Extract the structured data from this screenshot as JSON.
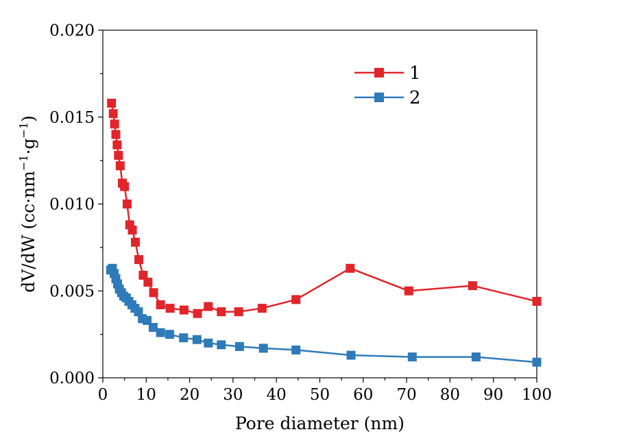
{
  "chart_data": {
    "type": "line",
    "title": "",
    "xlabel": "Pore diameter (nm)",
    "ylabel": "dV/dW (cc·nm⁻¹·g⁻¹)",
    "ylabel_parts": {
      "base": "dV/dW (cc·nm",
      "sup1": "−1",
      "mid": "·g",
      "sup2": "−1",
      "end": ")"
    },
    "xlim": [
      0,
      100
    ],
    "ylim": [
      0,
      0.02
    ],
    "xticks": [
      0,
      10,
      20,
      30,
      40,
      50,
      60,
      70,
      80,
      90,
      100
    ],
    "xtick_labels": [
      "0",
      "10",
      "20",
      "30",
      "40",
      "50",
      "60",
      "70",
      "80",
      "90",
      "100"
    ],
    "yticks": [
      0,
      0.005,
      0.01,
      0.015,
      0.02
    ],
    "ytick_labels": [
      "0.000",
      "0.005",
      "0.010",
      "0.015",
      "0.020"
    ],
    "legend_position": "top-right",
    "grid": false,
    "series": [
      {
        "name": "1",
        "color": "#e0252b",
        "x": [
          2.0,
          2.4,
          2.7,
          3.0,
          3.3,
          3.6,
          4.0,
          4.5,
          5.0,
          5.6,
          6.2,
          6.8,
          7.5,
          8.3,
          9.3,
          10.4,
          11.7,
          13.3,
          15.5,
          18.7,
          21.8,
          24.3,
          27.3,
          31.3,
          36.7,
          44.5,
          57.0,
          70.5,
          85.2,
          100.0
        ],
        "y": [
          0.0158,
          0.0152,
          0.0146,
          0.014,
          0.0134,
          0.0128,
          0.0122,
          0.0112,
          0.011,
          0.01,
          0.0088,
          0.0085,
          0.0078,
          0.0068,
          0.0059,
          0.0055,
          0.0049,
          0.0042,
          0.004,
          0.0039,
          0.0037,
          0.0041,
          0.0038,
          0.0038,
          0.004,
          0.0045,
          0.0063,
          0.005,
          0.0053,
          0.0044
        ]
      },
      {
        "name": "2",
        "color": "#2f7ab9",
        "x": [
          1.8,
          2.2,
          2.6,
          3.0,
          3.4,
          3.8,
          4.3,
          4.8,
          5.4,
          6.0,
          6.7,
          7.4,
          8.2,
          9.1,
          10.2,
          11.6,
          13.3,
          15.4,
          18.6,
          21.7,
          24.3,
          27.3,
          31.5,
          37.0,
          44.5,
          57.2,
          71.3,
          86.0,
          100.0
        ],
        "y": [
          0.0062,
          0.0063,
          0.006,
          0.0057,
          0.0054,
          0.0051,
          0.0049,
          0.0047,
          0.0046,
          0.0044,
          0.0042,
          0.004,
          0.0038,
          0.0034,
          0.0033,
          0.0029,
          0.0026,
          0.0025,
          0.0023,
          0.0022,
          0.002,
          0.0019,
          0.0018,
          0.0017,
          0.0016,
          0.0013,
          0.0012,
          0.0012,
          0.0009
        ]
      }
    ]
  }
}
